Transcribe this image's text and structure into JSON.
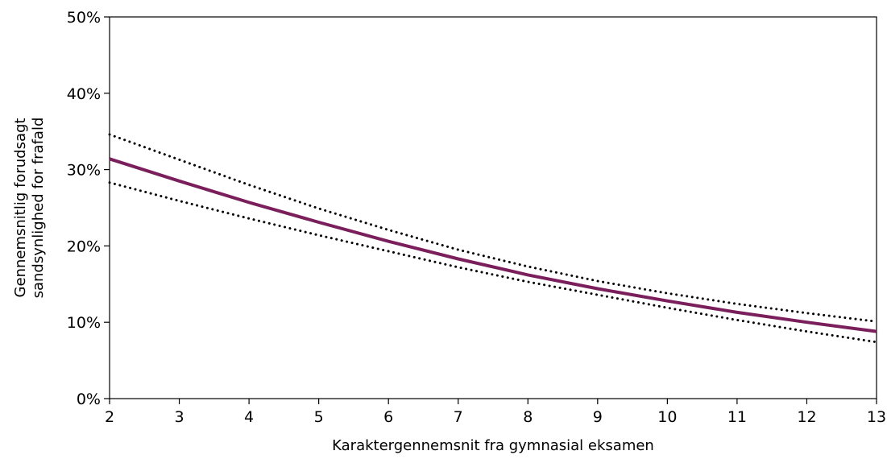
{
  "chart_data": {
    "type": "line",
    "title": "",
    "xlabel": "Karaktergennemsnit fra gymnasial eksamen",
    "ylabel": [
      "Gennemsnitlig forudsagt",
      "sandsynlighed for frafald"
    ],
    "xlim": [
      2,
      13
    ],
    "ylim": [
      0,
      50
    ],
    "x_ticks": [
      "2",
      "3",
      "4",
      "5",
      "6",
      "7",
      "8",
      "9",
      "10",
      "11",
      "12",
      "13"
    ],
    "y_ticks": [
      "0%",
      "10%",
      "20%",
      "30%",
      "40%",
      "50%"
    ],
    "grid": false,
    "x": [
      2,
      3,
      4,
      5,
      6,
      7,
      8,
      9,
      10,
      11,
      12,
      13
    ],
    "series": [
      {
        "style": "solid",
        "color": "#7a1f5c",
        "values": [
          31.4,
          28.5,
          25.7,
          23.1,
          20.6,
          18.3,
          16.2,
          14.4,
          12.8,
          11.3,
          10.0,
          8.8
        ]
      },
      {
        "style": "dotted",
        "color": "#000000",
        "values": [
          34.6,
          31.3,
          28.0,
          24.9,
          22.1,
          19.5,
          17.3,
          15.4,
          13.8,
          12.4,
          11.2,
          10.1
        ]
      },
      {
        "style": "dotted",
        "color": "#000000",
        "values": [
          28.3,
          25.9,
          23.6,
          21.4,
          19.3,
          17.2,
          15.3,
          13.6,
          11.9,
          10.3,
          8.8,
          7.4
        ]
      }
    ]
  }
}
